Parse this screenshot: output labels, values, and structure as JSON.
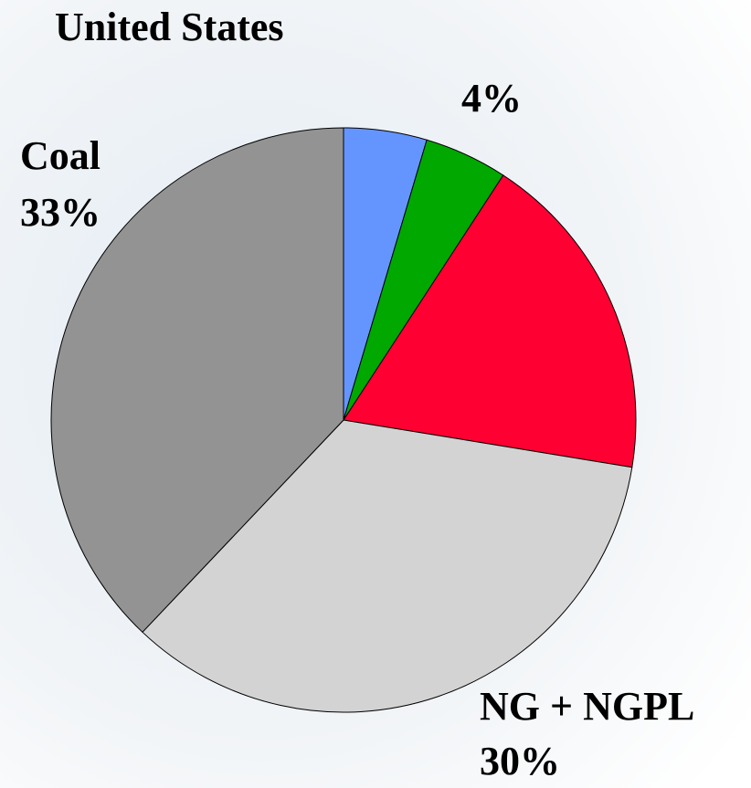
{
  "chart_data": {
    "type": "pie",
    "title": "United States",
    "categories": [
      null,
      null,
      null,
      "NG + NGPL",
      "Coal"
    ],
    "values": [
      4,
      4,
      16,
      30,
      33
    ],
    "value_labels": [
      "4%",
      null,
      null,
      "30%",
      "33%"
    ],
    "colors": [
      "#6495ff",
      "#00a800",
      "#ff0033",
      "#d3d3d3",
      "#939393"
    ]
  }
}
